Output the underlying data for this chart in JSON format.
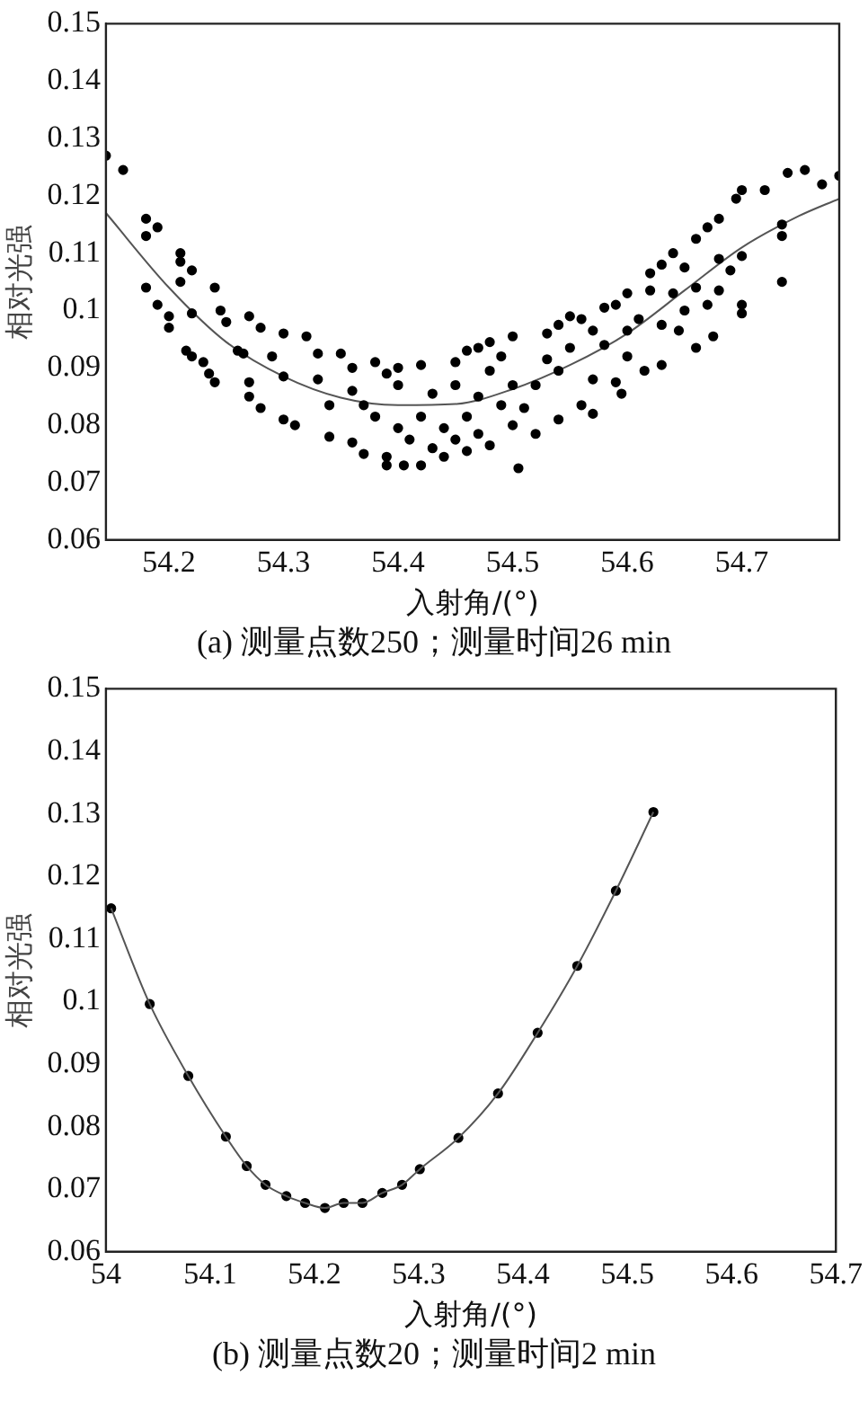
{
  "chart_data": [
    {
      "type": "scatter",
      "title": "(a) 测量点数250；测量时间26 min",
      "xlabel": "入射角/(°)",
      "ylabel": "相对光强",
      "xlim": [
        54.145,
        54.785
      ],
      "xticks": [
        54.2,
        54.3,
        54.4,
        54.5,
        54.6,
        54.7
      ],
      "ylim": [
        0.06,
        0.15
      ],
      "yticks": [
        0.06,
        0.07,
        0.08,
        0.09,
        0.1,
        0.11,
        0.12,
        0.13,
        0.14,
        0.15
      ],
      "grid": false,
      "series": [
        {
          "type": "scatter",
          "color": "#000000",
          "marker": "circle",
          "x": [
            54.145,
            54.16,
            54.18,
            54.19,
            54.18,
            54.21,
            54.21,
            54.22,
            54.21,
            54.18,
            54.19,
            54.2,
            54.2,
            54.22,
            54.215,
            54.22,
            54.23,
            54.235,
            54.24,
            54.24,
            54.245,
            54.25,
            54.26,
            54.265,
            54.27,
            54.27,
            54.28,
            54.27,
            54.28,
            54.3,
            54.29,
            54.3,
            54.3,
            54.31,
            54.32,
            54.33,
            54.33,
            54.34,
            54.34,
            54.35,
            54.36,
            54.36,
            54.36,
            54.37,
            54.37,
            54.38,
            54.38,
            54.39,
            54.39,
            54.39,
            54.4,
            54.4,
            54.4,
            54.405,
            54.41,
            54.42,
            54.42,
            54.42,
            54.43,
            54.43,
            54.44,
            54.44,
            54.45,
            54.45,
            54.45,
            54.46,
            54.46,
            54.46,
            54.47,
            54.47,
            54.47,
            54.48,
            54.48,
            54.48,
            54.49,
            54.49,
            54.5,
            54.5,
            54.5,
            54.505,
            54.51,
            54.52,
            54.52,
            54.53,
            54.53,
            54.54,
            54.54,
            54.54,
            54.55,
            54.55,
            54.56,
            54.56,
            54.57,
            54.57,
            54.57,
            54.58,
            54.58,
            54.59,
            54.59,
            54.595,
            54.6,
            54.6,
            54.6,
            54.61,
            54.615,
            54.62,
            54.62,
            54.63,
            54.63,
            54.63,
            54.64,
            54.64,
            54.645,
            54.65,
            54.65,
            54.66,
            54.66,
            54.66,
            54.67,
            54.67,
            54.675,
            54.68,
            54.68,
            54.68,
            54.69,
            54.695,
            54.7,
            54.7,
            54.7,
            54.7,
            54.72,
            54.735,
            54.735,
            54.735,
            54.74,
            54.755,
            54.77,
            54.785
          ],
          "values": [
            0.127,
            0.1245,
            0.116,
            0.1145,
            0.113,
            0.11,
            0.1085,
            0.107,
            0.105,
            0.104,
            0.101,
            0.099,
            0.097,
            0.0995,
            0.093,
            0.092,
            0.091,
            0.089,
            0.0875,
            0.104,
            0.1,
            0.098,
            0.093,
            0.0925,
            0.0875,
            0.085,
            0.083,
            0.099,
            0.097,
            0.096,
            0.092,
            0.0885,
            0.081,
            0.08,
            0.0955,
            0.0925,
            0.088,
            0.0835,
            0.078,
            0.0925,
            0.09,
            0.086,
            0.077,
            0.0835,
            0.075,
            0.091,
            0.0815,
            0.0745,
            0.089,
            0.073,
            0.09,
            0.087,
            0.0795,
            0.073,
            0.0775,
            0.0905,
            0.0815,
            0.073,
            0.0855,
            0.076,
            0.0795,
            0.0745,
            0.091,
            0.087,
            0.0775,
            0.093,
            0.0815,
            0.0755,
            0.0935,
            0.085,
            0.0785,
            0.0945,
            0.0895,
            0.0765,
            0.092,
            0.0835,
            0.0955,
            0.087,
            0.08,
            0.0725,
            0.083,
            0.0785,
            0.087,
            0.096,
            0.0915,
            0.0975,
            0.0895,
            0.081,
            0.099,
            0.0935,
            0.0985,
            0.0835,
            0.0965,
            0.088,
            0.082,
            0.1005,
            0.094,
            0.101,
            0.0875,
            0.0855,
            0.103,
            0.0965,
            0.092,
            0.0985,
            0.0895,
            0.1065,
            0.1035,
            0.108,
            0.0975,
            0.0905,
            0.11,
            0.103,
            0.0965,
            0.1075,
            0.1,
            0.1125,
            0.104,
            0.0935,
            0.1145,
            0.101,
            0.0955,
            0.116,
            0.109,
            0.1035,
            0.107,
            0.1195,
            0.121,
            0.1095,
            0.101,
            0.0995,
            0.121,
            0.115,
            0.113,
            0.105,
            0.124,
            0.1245,
            0.122,
            0.1235
          ]
        },
        {
          "type": "line",
          "color": "#555555",
          "marker": "none",
          "line_style": "solid",
          "x": [
            54.145,
            54.2,
            54.25,
            54.3,
            54.35,
            54.4,
            54.45,
            54.5,
            54.55,
            54.6,
            54.65,
            54.7,
            54.75,
            54.785
          ],
          "values": [
            0.117,
            0.104,
            0.0945,
            0.0885,
            0.0848,
            0.0835,
            0.0837,
            0.0863,
            0.0905,
            0.096,
            0.1035,
            0.111,
            0.1165,
            0.1195
          ]
        }
      ]
    },
    {
      "type": "scatter",
      "title": "(b) 测量点数20；测量时间2 min",
      "xlabel": "入射角/(°)",
      "ylabel": "相对光强",
      "xlim": [
        54,
        54.7
      ],
      "xticks": [
        54,
        54.1,
        54.2,
        54.3,
        54.4,
        54.5,
        54.6,
        54.7
      ],
      "ylim": [
        0.06,
        0.15
      ],
      "yticks": [
        0.06,
        0.07,
        0.08,
        0.09,
        0.1,
        0.11,
        0.12,
        0.13,
        0.14,
        0.15
      ],
      "grid": false,
      "series": [
        {
          "type": "line",
          "color": "#555555",
          "marker": "none",
          "line_style": "solid",
          "x": [
            54.005,
            54.042,
            54.079,
            54.115,
            54.135,
            54.153,
            54.173,
            54.191,
            54.21,
            54.228,
            54.246,
            54.265,
            54.284,
            54.301,
            54.338,
            54.376,
            54.414,
            54.452,
            54.489,
            54.525
          ],
          "values": [
            0.1149,
            0.0996,
            0.0881,
            0.0784,
            0.0737,
            0.0707,
            0.0689,
            0.0678,
            0.067,
            0.0678,
            0.0678,
            0.0694,
            0.0707,
            0.0732,
            0.0782,
            0.0853,
            0.095,
            0.1057,
            0.1177,
            0.1303
          ]
        },
        {
          "type": "scatter",
          "color": "#000000",
          "marker": "circle",
          "x": [
            54.005,
            54.042,
            54.079,
            54.115,
            54.135,
            54.153,
            54.173,
            54.191,
            54.21,
            54.228,
            54.246,
            54.265,
            54.284,
            54.301,
            54.338,
            54.376,
            54.414,
            54.452,
            54.489,
            54.525
          ],
          "values": [
            0.1149,
            0.0996,
            0.0881,
            0.0784,
            0.0737,
            0.0707,
            0.0689,
            0.0678,
            0.067,
            0.0678,
            0.0678,
            0.0694,
            0.0707,
            0.0732,
            0.0782,
            0.0853,
            0.095,
            0.1057,
            0.1177,
            0.1303
          ]
        }
      ]
    }
  ]
}
